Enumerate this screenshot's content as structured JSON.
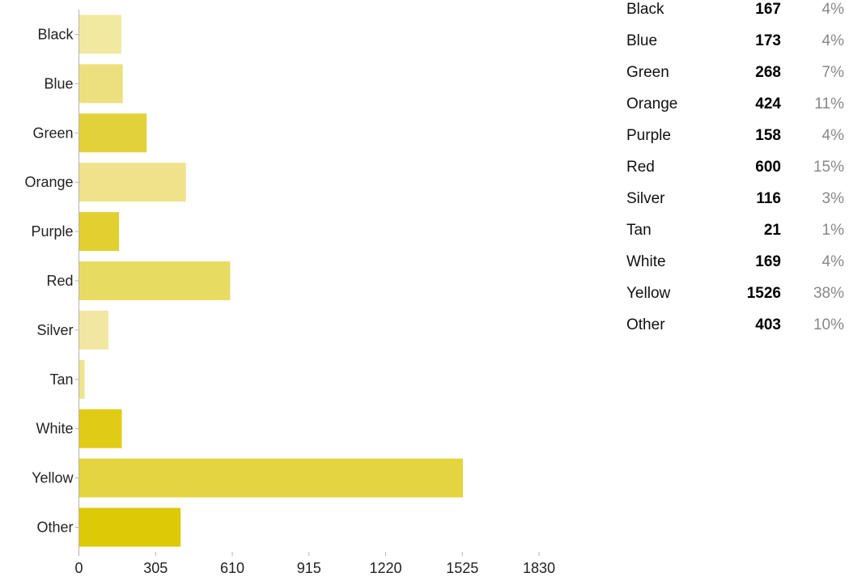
{
  "chart_data": {
    "type": "bar",
    "orientation": "horizontal",
    "categories": [
      "Black",
      "Blue",
      "Green",
      "Orange",
      "Purple",
      "Red",
      "Silver",
      "Tan",
      "White",
      "Yellow",
      "Other"
    ],
    "values": [
      167,
      173,
      268,
      424,
      158,
      600,
      116,
      21,
      169,
      1526,
      403
    ],
    "percentages": [
      "4%",
      "4%",
      "7%",
      "11%",
      "4%",
      "15%",
      "3%",
      "1%",
      "4%",
      "38%",
      "10%"
    ],
    "xlim": [
      0,
      1830
    ],
    "xticks": [
      "0",
      "305",
      "610",
      "915",
      "1220",
      "1525",
      "1830"
    ],
    "bar_colors": [
      "#f1e9a0",
      "#ece07e",
      "#e3d13c",
      "#eee28a",
      "#e2cf30",
      "#e8db62",
      "#f1e7a3",
      "#eee58d",
      "#e0cc14",
      "#e3d440",
      "#ddc905"
    ],
    "axis_color": "#b3b3b3",
    "grid": false,
    "legend": "none",
    "title": "",
    "xlabel": "",
    "ylabel": ""
  }
}
